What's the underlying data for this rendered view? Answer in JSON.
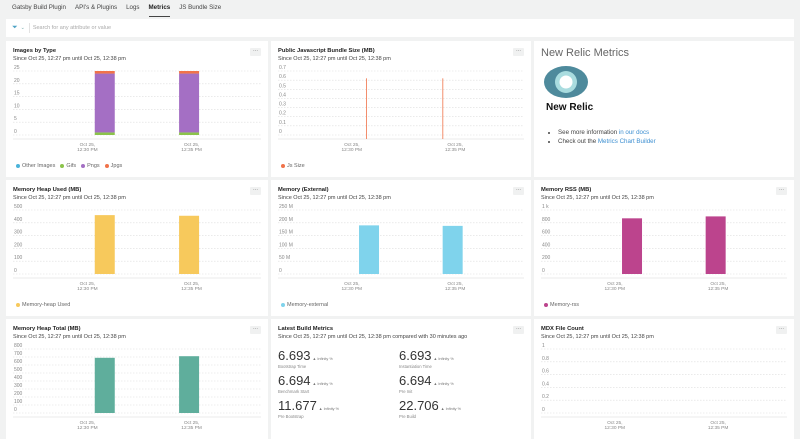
{
  "tabs": [
    "Gatsby Build Plugin",
    "API's & Plugins",
    "Logs",
    "Metrics",
    "JS Bundle Size"
  ],
  "active_tab": "Metrics",
  "search": {
    "placeholder": "Search for any attribute or value",
    "filter_icon": "filter-icon"
  },
  "time_range": "Since Oct 25, 12:27 pm until Oct 25, 12:38 pm",
  "more_label": "...",
  "x_ticks": [
    "Oct 25,|12:30 PM",
    "Oct 25,|12:35 PM"
  ],
  "charts": {
    "images": {
      "title": "Images by Type",
      "subtitle": "Since Oct 25, 12:27 pm until Oct 25, 12:38 pm",
      "type": "stacked-bar",
      "yticks": [
        "0",
        "5",
        "10",
        "15",
        "20",
        "25"
      ],
      "ymax": 25,
      "series": [
        {
          "name": "Other Images",
          "color": "#4bb3d9",
          "values": [
            0,
            0
          ]
        },
        {
          "name": "Gifs",
          "color": "#8bc34a",
          "values": [
            1,
            1
          ]
        },
        {
          "name": "Pngs",
          "color": "#a46fc4",
          "values": [
            23,
            23
          ]
        },
        {
          "name": "Jpgs",
          "color": "#f0734a",
          "values": [
            1,
            1
          ]
        }
      ]
    },
    "bundle": {
      "title": "Public Javascript Bundle Size (MB)",
      "subtitle": "Since Oct 25, 12:27 pm until Oct 25, 12:38 pm",
      "type": "spike",
      "yticks": [
        "0",
        "0.1",
        "0.2",
        "0.3",
        "0.4",
        "0.5",
        "0.6",
        "0.7"
      ],
      "ymax": 0.7,
      "series": [
        {
          "name": "Js Size",
          "color": "#f0734a",
          "values": [
            0.62,
            0.62
          ]
        }
      ]
    },
    "heap_used": {
      "title": "Memory Heap Used (MB)",
      "subtitle": "Since Oct 25, 12:27 pm until Oct 25, 12:38 pm",
      "type": "bar",
      "yticks": [
        "0",
        "100",
        "200",
        "300",
        "400",
        "500"
      ],
      "ymax": 500,
      "series": [
        {
          "name": "Memory-heap Used",
          "color": "#f7c95c",
          "values": [
            460,
            455
          ]
        }
      ]
    },
    "external": {
      "title": "Memory (External)",
      "subtitle": "Since Oct 25, 12:27 pm until Oct 25, 12:38 pm",
      "type": "bar",
      "yticks": [
        "0",
        "50 M",
        "100 M",
        "150 M",
        "200 M",
        "250 M"
      ],
      "ymax": 250,
      "series": [
        {
          "name": "Memory-external",
          "color": "#7fd3ec",
          "values": [
            190,
            188
          ]
        }
      ]
    },
    "rss": {
      "title": "Memory RSS (MB)",
      "subtitle": "Since Oct 25, 12:27 pm until Oct 25, 12:38 pm",
      "type": "bar",
      "yticks": [
        "0",
        "200",
        "400",
        "600",
        "800",
        "1 k"
      ],
      "ymax": 1000,
      "series": [
        {
          "name": "Memory-rss",
          "color": "#bc448d",
          "values": [
            870,
            900
          ]
        }
      ]
    },
    "heap_total": {
      "title": "Memory Heap Total (MB)",
      "subtitle": "Since Oct 25, 12:27 pm until Oct 25, 12:38 pm",
      "type": "bar",
      "yticks": [
        "0",
        "100",
        "200",
        "300",
        "400",
        "500",
        "600",
        "700",
        "800"
      ],
      "ymax": 800,
      "series": [
        {
          "name": "Memory-heap Total",
          "color": "#5fae9c",
          "values": [
            690,
            710
          ]
        }
      ]
    },
    "mdx": {
      "title": "MDX File Count",
      "subtitle": "Since Oct 25, 12:27 pm until Oct 25, 12:38 pm",
      "type": "bar",
      "yticks": [
        "0",
        "0.2",
        "0.4",
        "0.6",
        "0.8",
        "1"
      ],
      "ymax": 1,
      "series": [
        {
          "name": "Mdx",
          "color": "#8bc34a",
          "values": [
            0,
            0
          ]
        }
      ]
    }
  },
  "new_relic": {
    "title": "New Relic Metrics",
    "logo_text": "New Relic.",
    "items": [
      {
        "text": "See more information ",
        "link": "in our docs"
      },
      {
        "text": "Check out the ",
        "link": "Metrics Chart Builder"
      }
    ]
  },
  "build_metrics": {
    "title": "Latest Build Metrics",
    "subtitle": "Since Oct 25, 12:27 pm until Oct 25, 12:38 pm compared with 30 minutes ago",
    "items": [
      {
        "value": "6.693",
        "delta": "▲ Infinity %",
        "label": "Bootstrap Time"
      },
      {
        "value": "6.693",
        "delta": "▲ Infinity %",
        "label": "Instantiation Time"
      },
      {
        "value": "6.694",
        "delta": "▲ Infinity %",
        "label": "Benchmark Start"
      },
      {
        "value": "6.694",
        "delta": "▲ Infinity %",
        "label": "Pre Init"
      },
      {
        "value": "11.677",
        "delta": "▲ Infinity %",
        "label": "Pre Bootstrap"
      },
      {
        "value": "22.706",
        "delta": "▲ Infinity %",
        "label": "Pre Build"
      }
    ]
  }
}
